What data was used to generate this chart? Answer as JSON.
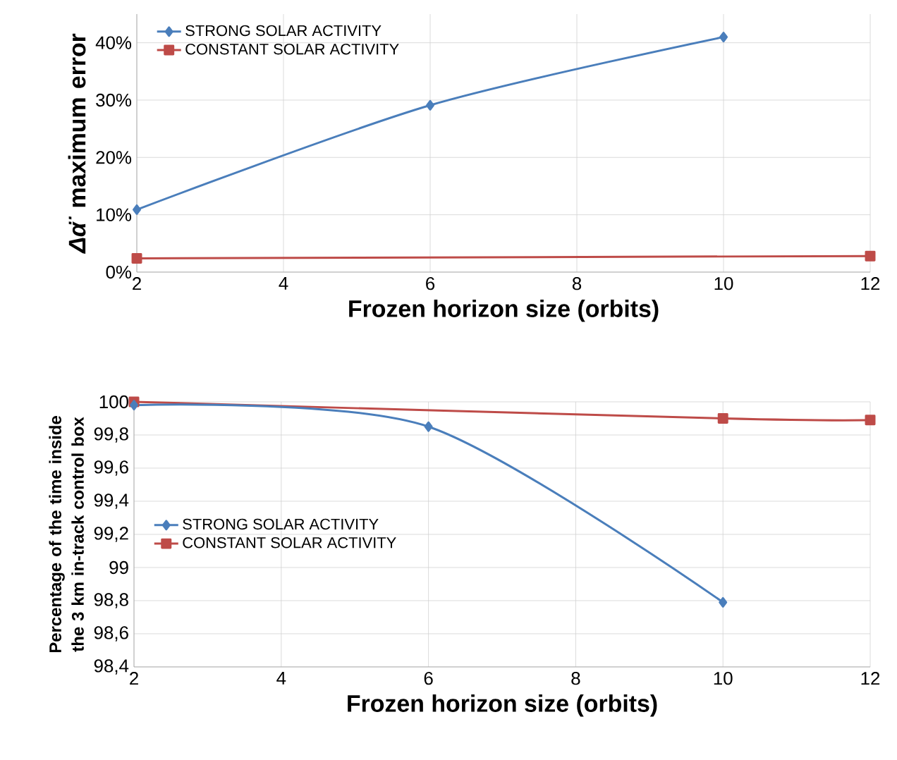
{
  "chart_data": [
    {
      "type": "line",
      "ylabel": "*Δα̈*  maximum error",
      "xlabel": "Frozen horizon size (orbits)",
      "xlim": [
        2,
        12
      ],
      "xticks": [
        2,
        4,
        6,
        8,
        10,
        12
      ],
      "ylim": [
        0,
        45
      ],
      "yticks": [
        {
          "value": 0,
          "label": "0%"
        },
        {
          "value": 10,
          "label": "10%"
        },
        {
          "value": 20,
          "label": "20%"
        },
        {
          "value": 30,
          "label": "30%"
        },
        {
          "value": 40,
          "label": "40%"
        }
      ],
      "grid": true,
      "legend": "top left",
      "series": [
        {
          "name": "STRONG SOLAR ACTIVITY",
          "color": "#4a7ebb",
          "marker": "diamond",
          "x": [
            2,
            6,
            10
          ],
          "values": [
            10.9,
            29.1,
            41.0
          ]
        },
        {
          "name": "CONSTANT SOLAR ACTIVITY",
          "color": "#be4b48",
          "marker": "square",
          "x": [
            2,
            12
          ],
          "values": [
            2.4,
            2.8
          ]
        }
      ]
    },
    {
      "type": "line",
      "ylabel": "Percentage of the time inside the 3 km in-track control box",
      "xlabel": "Frozen horizon size (orbits)",
      "xlim": [
        2,
        12
      ],
      "xticks": [
        2,
        4,
        6,
        8,
        10,
        12
      ],
      "ylim": [
        98.4,
        100
      ],
      "yticks": [
        {
          "value": 98.4,
          "label": "98,4"
        },
        {
          "value": 98.6,
          "label": "98,6"
        },
        {
          "value": 98.8,
          "label": "98,8"
        },
        {
          "value": 99,
          "label": "99"
        },
        {
          "value": 99.2,
          "label": "99,2"
        },
        {
          "value": 99.4,
          "label": "99,4"
        },
        {
          "value": 99.6,
          "label": "99,6"
        },
        {
          "value": 99.8,
          "label": "99,8"
        },
        {
          "value": 100,
          "label": "100"
        }
      ],
      "grid": true,
      "legend": "left",
      "series": [
        {
          "name": "STRONG SOLAR ACTIVITY",
          "color": "#4a7ebb",
          "marker": "diamond",
          "x": [
            2,
            6,
            10
          ],
          "values": [
            99.98,
            99.85,
            98.79
          ]
        },
        {
          "name": "CONSTANT SOLAR ACTIVITY",
          "color": "#be4b48",
          "marker": "square",
          "x": [
            2,
            10,
            12
          ],
          "values": [
            100,
            99.9,
            99.89
          ]
        }
      ]
    }
  ]
}
